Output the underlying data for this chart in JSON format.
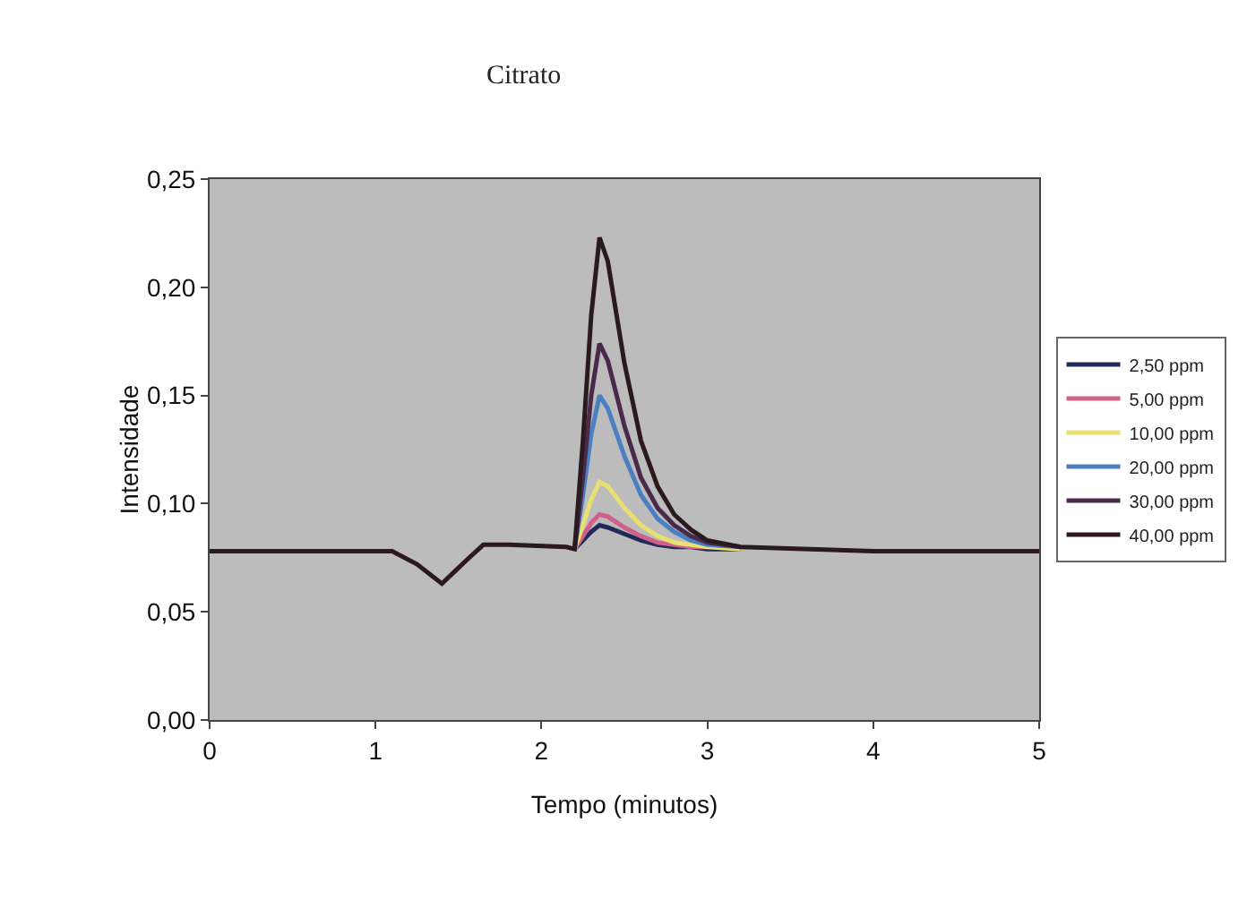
{
  "chart_data": {
    "type": "line",
    "title": "Citrato",
    "xlabel": "Tempo (minutos)",
    "ylabel": "Intensidade",
    "x": [
      0,
      1.1,
      1.25,
      1.4,
      1.55,
      1.65,
      1.8,
      2.15,
      2.2,
      2.25,
      2.3,
      2.35,
      2.4,
      2.5,
      2.6,
      2.7,
      2.8,
      2.9,
      3.0,
      3.2,
      4,
      5
    ],
    "xlim": [
      0,
      5
    ],
    "xticks": [
      0,
      1,
      2,
      3,
      4,
      5
    ],
    "ylim": [
      0,
      0.25
    ],
    "yticks": [
      {
        "value": 0,
        "label": "0,00"
      },
      {
        "value": 0.05,
        "label": "0,05"
      },
      {
        "value": 0.1,
        "label": "0,10"
      },
      {
        "value": 0.15,
        "label": "0,15"
      },
      {
        "value": 0.2,
        "label": "0,20"
      },
      {
        "value": 0.25,
        "label": "0,25"
      }
    ],
    "grid": false,
    "legend": "right",
    "marker": "none",
    "line_style": "solid",
    "series": [
      {
        "name": "2,50 ppm",
        "color": "#1f2a5a",
        "values": [
          null,
          null,
          null,
          null,
          null,
          null,
          null,
          null,
          0.079,
          0.083,
          0.087,
          0.09,
          0.089,
          0.086,
          0.083,
          0.081,
          0.08,
          0.08,
          0.079,
          0.079,
          null,
          null
        ]
      },
      {
        "name": "5,00 ppm",
        "color": "#d0608a",
        "values": [
          null,
          null,
          null,
          null,
          null,
          null,
          null,
          null,
          0.079,
          0.085,
          0.091,
          0.095,
          0.094,
          0.089,
          0.085,
          0.082,
          0.081,
          0.08,
          0.08,
          null,
          null,
          null
        ]
      },
      {
        "name": "10,00 ppm",
        "color": "#e8e070",
        "values": [
          null,
          null,
          null,
          null,
          null,
          null,
          null,
          null,
          0.079,
          0.09,
          0.102,
          0.11,
          0.108,
          0.098,
          0.09,
          0.085,
          0.082,
          0.081,
          0.08,
          0.079,
          null,
          null
        ]
      },
      {
        "name": "20,00 ppm",
        "color": "#4a80c0",
        "values": [
          null,
          null,
          null,
          null,
          null,
          null,
          null,
          null,
          0.079,
          0.104,
          0.132,
          0.15,
          0.144,
          0.122,
          0.104,
          0.093,
          0.087,
          0.083,
          0.081,
          0.08,
          null,
          null
        ]
      },
      {
        "name": "30,00 ppm",
        "color": "#4a2a4a",
        "values": [
          null,
          null,
          null,
          null,
          null,
          null,
          null,
          null,
          0.079,
          0.112,
          0.15,
          0.174,
          0.166,
          0.136,
          0.112,
          0.098,
          0.09,
          0.085,
          0.082,
          0.08,
          null,
          null
        ]
      },
      {
        "name": "40,00 ppm",
        "color": "#2a1a20",
        "values": [
          0.078,
          0.078,
          0.072,
          0.063,
          0.074,
          0.081,
          0.081,
          0.08,
          0.079,
          0.129,
          0.187,
          0.223,
          0.212,
          0.165,
          0.129,
          0.108,
          0.095,
          0.088,
          0.083,
          0.08,
          0.078,
          0.078
        ]
      }
    ]
  }
}
